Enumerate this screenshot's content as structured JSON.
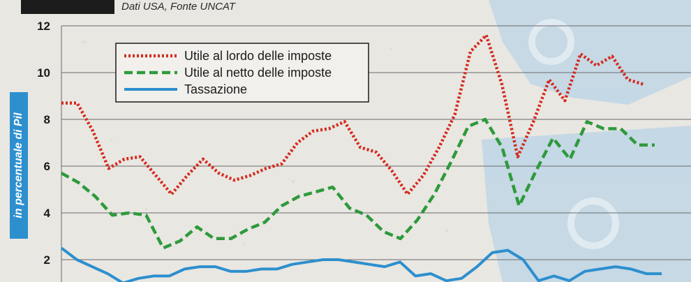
{
  "header": {
    "subtitle": "Dati USA, Fonte UNCAT"
  },
  "chart_data": {
    "type": "line",
    "title": "",
    "xlabel": "",
    "ylabel": "in percentuale di Pil",
    "ylim": [
      0,
      12
    ],
    "yticks": [
      "12",
      "10",
      "8",
      "6",
      "4",
      "2"
    ],
    "grid": true,
    "legend_position": "top-left",
    "series": [
      {
        "name": "Utile al lordo delle imposte",
        "color": "#d42a1e",
        "style": "dotted",
        "values": [
          8.7,
          8.7,
          7.5,
          5.9,
          6.3,
          6.4,
          5.6,
          4.8,
          5.6,
          6.3,
          5.7,
          5.4,
          5.6,
          5.9,
          6.1,
          7.0,
          7.5,
          7.6,
          7.9,
          6.8,
          6.6,
          5.8,
          4.8,
          5.6,
          6.8,
          8.2,
          10.9,
          11.6,
          9.5,
          6.4,
          7.9,
          9.7,
          8.8,
          10.8,
          10.3,
          10.7,
          9.7,
          9.5
        ]
      },
      {
        "name": "Utile al netto delle imposte",
        "color": "#2e9a3c",
        "style": "dashed",
        "values": [
          5.7,
          5.3,
          4.7,
          3.9,
          4.0,
          3.9,
          2.5,
          2.8,
          3.4,
          2.9,
          2.9,
          3.3,
          3.6,
          4.3,
          4.7,
          4.9,
          5.1,
          4.2,
          3.9,
          3.2,
          2.9,
          3.7,
          4.8,
          6.2,
          7.7,
          8.0,
          6.8,
          4.3,
          5.8,
          7.2,
          6.3,
          7.9,
          7.6,
          7.6,
          6.9,
          6.9
        ]
      },
      {
        "name": "Tassazione",
        "color": "#2d8fce",
        "style": "solid",
        "values": [
          2.5,
          2.0,
          1.7,
          1.4,
          1.0,
          1.2,
          1.3,
          1.3,
          1.6,
          1.7,
          1.7,
          1.5,
          1.5,
          1.6,
          1.6,
          1.8,
          1.9,
          2.0,
          2.0,
          1.9,
          1.8,
          1.7,
          1.9,
          1.3,
          1.4,
          1.1,
          1.2,
          1.7,
          2.3,
          2.4,
          2.0,
          1.1,
          1.3,
          1.1,
          1.5,
          1.6,
          1.7,
          1.6,
          1.4,
          1.4
        ]
      }
    ]
  }
}
